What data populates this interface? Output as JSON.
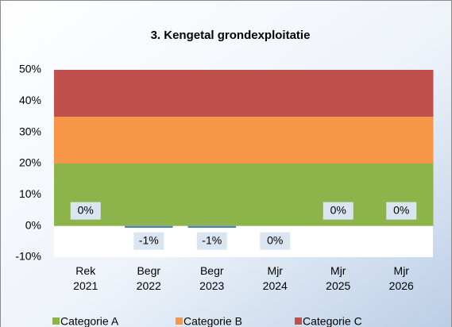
{
  "chart_data": {
    "type": "bar",
    "title": "3. Kengetal grondexploitatie",
    "categories": [
      [
        "Rek",
        "2021"
      ],
      [
        "Begr",
        "2022"
      ],
      [
        "Begr",
        "2023"
      ],
      [
        "Mjr",
        "2024"
      ],
      [
        "Mjr",
        "2025"
      ],
      [
        "Mjr",
        "2026"
      ]
    ],
    "values": [
      0,
      -1,
      -1,
      0,
      0,
      0
    ],
    "value_labels": [
      "0%",
      "-1%",
      "-1%",
      "0%",
      "0%",
      "0%"
    ],
    "color": "#4f81bd",
    "series": [
      {
        "name": "Categorie A",
        "color": "#8db44a",
        "values": [
          20,
          20,
          20,
          20,
          20,
          20
        ]
      },
      {
        "name": "Categorie B",
        "color": "#f79646",
        "values": [
          15,
          15,
          15,
          15,
          15,
          15
        ]
      },
      {
        "name": "Categorie C",
        "color": "#c0504d",
        "values": [
          15,
          15,
          15,
          15,
          15,
          15
        ]
      }
    ],
    "stacked": true,
    "ylim": [
      -10,
      50
    ],
    "yticks": [
      {
        "value": -10,
        "label": "-10%"
      },
      {
        "value": 0,
        "label": "0%"
      },
      {
        "value": 10,
        "label": "10%"
      },
      {
        "value": 20,
        "label": "20%"
      },
      {
        "value": 30,
        "label": "30%"
      },
      {
        "value": 40,
        "label": "40%"
      },
      {
        "value": 50,
        "label": "50%"
      }
    ],
    "legend": "bottom"
  }
}
